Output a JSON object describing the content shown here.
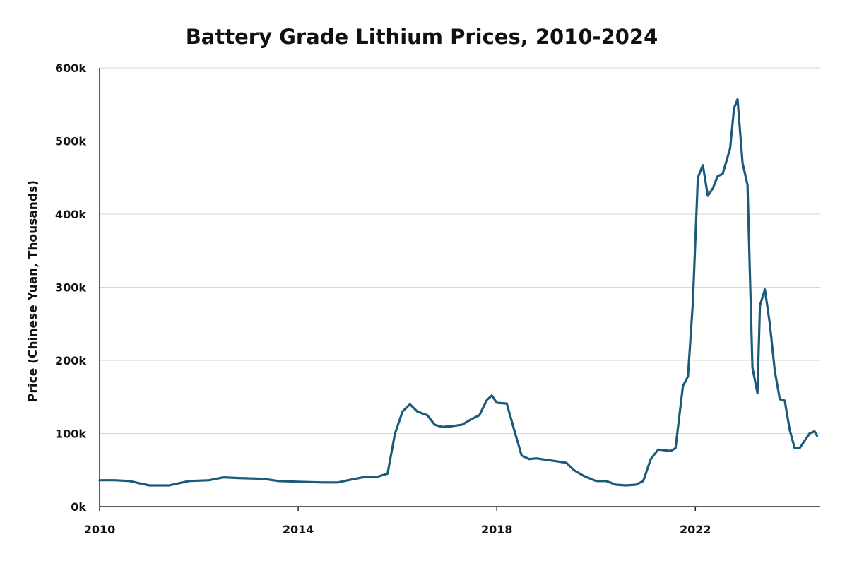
{
  "chart_data": {
    "type": "line",
    "title": "Battery Grade Lithium Prices, 2010-2024",
    "xlabel": "",
    "ylabel": "Price (Chinese Yuan, Thousands)",
    "xlim": [
      2010,
      2024.5
    ],
    "ylim": [
      0,
      600000
    ],
    "x_ticks": [
      2010,
      2014,
      2018,
      2022
    ],
    "x_tick_labels": [
      "2010",
      "2014",
      "2018",
      "2022"
    ],
    "y_ticks": [
      0,
      100000,
      200000,
      300000,
      400000,
      500000,
      600000
    ],
    "y_tick_labels": [
      "0k",
      "100k",
      "200k",
      "300k",
      "400k",
      "500k",
      "600k"
    ],
    "grid": true,
    "series": [
      {
        "name": "Battery Grade Lithium Price",
        "color": "#1c5a7a",
        "x": [
          2010.0,
          2010.3,
          2010.6,
          2010.8,
          2011.0,
          2011.4,
          2011.6,
          2011.8,
          2012.2,
          2012.5,
          2012.8,
          2013.3,
          2013.6,
          2014.0,
          2014.5,
          2014.8,
          2015.0,
          2015.3,
          2015.6,
          2015.8,
          2015.95,
          2016.1,
          2016.25,
          2016.4,
          2016.6,
          2016.75,
          2016.9,
          2017.1,
          2017.3,
          2017.5,
          2017.65,
          2017.8,
          2017.9,
          2018.0,
          2018.2,
          2018.35,
          2018.5,
          2018.65,
          2018.8,
          2019.0,
          2019.2,
          2019.4,
          2019.55,
          2019.75,
          2020.0,
          2020.2,
          2020.4,
          2020.6,
          2020.8,
          2020.95,
          2021.1,
          2021.25,
          2021.4,
          2021.5,
          2021.6,
          2021.75,
          2021.85,
          2021.95,
          2022.05,
          2022.15,
          2022.25,
          2022.35,
          2022.45,
          2022.55,
          2022.7,
          2022.78,
          2022.85,
          2022.95,
          2023.05,
          2023.15,
          2023.25,
          2023.3,
          2023.4,
          2023.5,
          2023.6,
          2023.7,
          2023.8,
          2023.9,
          2024.0,
          2024.1,
          2024.2,
          2024.3,
          2024.4,
          2024.45
        ],
        "values": [
          36000,
          36000,
          35000,
          32000,
          29000,
          29000,
          32000,
          35000,
          36000,
          40000,
          39000,
          38000,
          35000,
          34000,
          33000,
          33000,
          36000,
          40000,
          41000,
          45000,
          100000,
          130000,
          140000,
          130000,
          125000,
          112000,
          109000,
          110000,
          112000,
          120000,
          125000,
          146000,
          152000,
          142000,
          141000,
          105000,
          70000,
          65000,
          66000,
          64000,
          62000,
          60000,
          50000,
          42000,
          35000,
          35000,
          30000,
          29000,
          30000,
          35000,
          65000,
          78000,
          77000,
          76000,
          80000,
          165000,
          178000,
          280000,
          450000,
          467000,
          425000,
          435000,
          452000,
          455000,
          490000,
          545000,
          557000,
          470000,
          440000,
          190000,
          155000,
          275000,
          297000,
          250000,
          185000,
          147000,
          145000,
          105000,
          80000,
          80000,
          90000,
          100000,
          103000,
          97000
        ]
      }
    ]
  }
}
